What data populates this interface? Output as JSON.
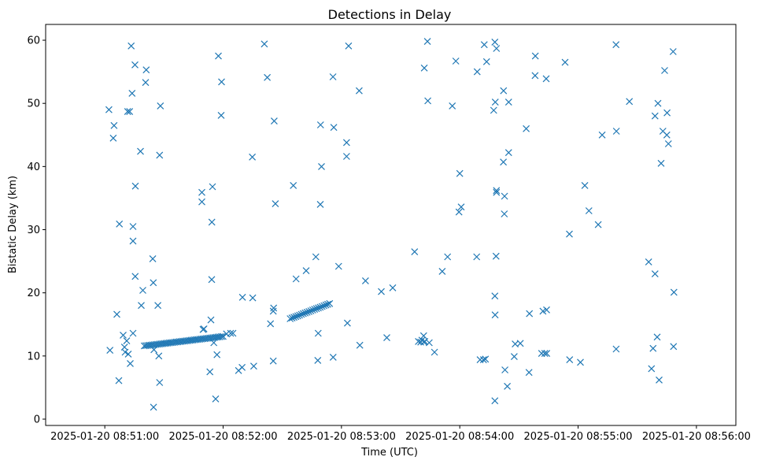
{
  "chart_data": {
    "type": "scatter",
    "title": "Detections in Delay",
    "xlabel": "Time (UTC)",
    "ylabel": "Bistatic Delay (km)",
    "marker": "x",
    "marker_color": "#1f77b4",
    "x_unit": "seconds since 2025-01-20 08:51:00",
    "xlim": [
      -30,
      320
    ],
    "ylim": [
      -1,
      62.5
    ],
    "x_ticks": [
      0,
      60,
      120,
      180,
      240,
      300
    ],
    "x_tick_labels": [
      "2025-01-20 08:51:00",
      "2025-01-20 08:52:00",
      "2025-01-20 08:53:00",
      "2025-01-20 08:54:00",
      "2025-01-20 08:55:00",
      "2025-01-20 08:56:00"
    ],
    "y_ticks": [
      0,
      10,
      20,
      30,
      40,
      50,
      60
    ],
    "y_tick_labels": [
      "0",
      "10",
      "20",
      "30",
      "40",
      "50",
      "60"
    ],
    "track_segments": [
      {
        "x0": 20,
        "x1": 60,
        "y0": 11.6,
        "y1": 13.1,
        "n": 48
      },
      {
        "x0": 94,
        "x1": 114,
        "y0": 15.9,
        "y1": 18.3,
        "n": 22
      }
    ],
    "points": [
      [
        2.1,
        49.0
      ],
      [
        2.6,
        10.9
      ],
      [
        4.3,
        44.5
      ],
      [
        4.7,
        46.5
      ],
      [
        6.1,
        16.6
      ],
      [
        7.4,
        30.9
      ],
      [
        7.1,
        6.1
      ],
      [
        9.3,
        13.3
      ],
      [
        10.0,
        11.4
      ],
      [
        10.3,
        10.6
      ],
      [
        11.1,
        12.4
      ],
      [
        11.9,
        10.3
      ],
      [
        12.9,
        8.8
      ],
      [
        11.6,
        48.7
      ],
      [
        12.6,
        48.7
      ],
      [
        13.4,
        59.1
      ],
      [
        13.8,
        51.6
      ],
      [
        14.3,
        13.6
      ],
      [
        14.3,
        30.5
      ],
      [
        14.3,
        28.2
      ],
      [
        15.3,
        56.1
      ],
      [
        15.5,
        36.9
      ],
      [
        15.4,
        22.6
      ],
      [
        18.1,
        42.4
      ],
      [
        18.5,
        18.0
      ],
      [
        19.3,
        20.4
      ],
      [
        21.0,
        55.3
      ],
      [
        20.7,
        53.3
      ],
      [
        24.3,
        25.4
      ],
      [
        24.6,
        21.6
      ],
      [
        24.9,
        11.0
      ],
      [
        24.7,
        1.9
      ],
      [
        26.9,
        18.0
      ],
      [
        27.4,
        10.0
      ],
      [
        27.8,
        5.8
      ],
      [
        27.8,
        41.8
      ],
      [
        28.2,
        49.6
      ],
      [
        49.2,
        34.4
      ],
      [
        49.2,
        35.9
      ],
      [
        49.8,
        14.2
      ],
      [
        50.3,
        14.3
      ],
      [
        53.3,
        7.5
      ],
      [
        53.8,
        15.7
      ],
      [
        54.2,
        22.1
      ],
      [
        54.3,
        31.2
      ],
      [
        54.6,
        36.8
      ],
      [
        55.3,
        12.1
      ],
      [
        56.2,
        3.2
      ],
      [
        56.9,
        10.2
      ],
      [
        57.6,
        57.5
      ],
      [
        59.0,
        48.1
      ],
      [
        59.2,
        53.4
      ],
      [
        61.7,
        13.5
      ],
      [
        63.8,
        13.6
      ],
      [
        65.0,
        13.6
      ],
      [
        67.8,
        7.7
      ],
      [
        69.6,
        8.2
      ],
      [
        69.8,
        19.3
      ],
      [
        74.8,
        41.5
      ],
      [
        75.0,
        19.2
      ],
      [
        75.5,
        8.4
      ],
      [
        80.9,
        59.4
      ],
      [
        82.4,
        54.1
      ],
      [
        84.0,
        15.1
      ],
      [
        85.4,
        9.2
      ],
      [
        85.4,
        17.1
      ],
      [
        85.6,
        17.6
      ],
      [
        85.9,
        47.2
      ],
      [
        86.5,
        34.1
      ],
      [
        95.6,
        37.0
      ],
      [
        97.0,
        22.2
      ],
      [
        102.1,
        23.5
      ],
      [
        107.0,
        25.7
      ],
      [
        108.2,
        13.6
      ],
      [
        108.0,
        9.3
      ],
      [
        109.3,
        34.0
      ],
      [
        109.4,
        46.6
      ],
      [
        109.9,
        40.0
      ],
      [
        115.7,
        54.2
      ],
      [
        115.8,
        9.8
      ],
      [
        116.1,
        46.2
      ],
      [
        118.6,
        24.2
      ],
      [
        122.6,
        43.8
      ],
      [
        122.6,
        41.6
      ],
      [
        123.6,
        59.1
      ],
      [
        123.0,
        15.2
      ],
      [
        129.0,
        52.0
      ],
      [
        129.3,
        11.7
      ],
      [
        132.2,
        21.9
      ],
      [
        140.2,
        20.2
      ],
      [
        143.0,
        12.9
      ],
      [
        146.0,
        20.8
      ],
      [
        157.1,
        26.5
      ],
      [
        159.0,
        12.3
      ],
      [
        160.2,
        12.2
      ],
      [
        160.8,
        12.5
      ],
      [
        161.8,
        12.2
      ],
      [
        161.7,
        13.2
      ],
      [
        162.3,
        12.3
      ],
      [
        162.0,
        55.6
      ],
      [
        163.6,
        59.8
      ],
      [
        163.8,
        50.4
      ],
      [
        164.5,
        12.1
      ],
      [
        167.2,
        10.6
      ],
      [
        171.1,
        23.4
      ],
      [
        173.8,
        25.7
      ],
      [
        176.2,
        49.6
      ],
      [
        178.0,
        56.7
      ],
      [
        179.6,
        32.8
      ],
      [
        180.0,
        38.9
      ],
      [
        180.7,
        33.6
      ],
      [
        188.6,
        25.7
      ],
      [
        188.8,
        55.0
      ],
      [
        190.3,
        9.4
      ],
      [
        192.0,
        9.4
      ],
      [
        192.4,
        59.3
      ],
      [
        193.0,
        9.5
      ],
      [
        193.6,
        56.6
      ],
      [
        197.2,
        48.9
      ],
      [
        197.8,
        59.7
      ],
      [
        198.0,
        50.2
      ],
      [
        197.8,
        19.5
      ],
      [
        197.9,
        16.5
      ],
      [
        197.8,
        2.9
      ],
      [
        198.4,
        25.8
      ],
      [
        198.6,
        58.7
      ],
      [
        198.6,
        36.2
      ],
      [
        198.6,
        35.9
      ],
      [
        202.2,
        52.0
      ],
      [
        202.1,
        40.7
      ],
      [
        202.7,
        35.3
      ],
      [
        202.6,
        32.5
      ],
      [
        202.9,
        7.8
      ],
      [
        204.1,
        5.2
      ],
      [
        204.8,
        50.2
      ],
      [
        204.8,
        42.2
      ],
      [
        207.6,
        9.9
      ],
      [
        208.1,
        11.9
      ],
      [
        210.7,
        12.0
      ],
      [
        213.7,
        46.0
      ],
      [
        215.1,
        7.4
      ],
      [
        215.3,
        16.7
      ],
      [
        218.3,
        57.5
      ],
      [
        218.2,
        54.4
      ],
      [
        221.5,
        10.4
      ],
      [
        222.2,
        17.1
      ],
      [
        223.1,
        10.4
      ],
      [
        224.0,
        17.3
      ],
      [
        224.1,
        10.4
      ],
      [
        223.8,
        53.9
      ],
      [
        233.4,
        56.5
      ],
      [
        235.6,
        29.3
      ],
      [
        235.7,
        9.4
      ],
      [
        241.2,
        9.0
      ],
      [
        243.4,
        37.0
      ],
      [
        245.5,
        33.0
      ],
      [
        250.2,
        30.8
      ],
      [
        252.2,
        45.0
      ],
      [
        259.4,
        45.6
      ],
      [
        259.2,
        59.3
      ],
      [
        259.3,
        11.1
      ],
      [
        266.0,
        50.3
      ],
      [
        275.8,
        24.9
      ],
      [
        277.2,
        8.0
      ],
      [
        278.0,
        11.2
      ],
      [
        279.0,
        48.0
      ],
      [
        279.0,
        23.0
      ],
      [
        280.1,
        13.0
      ],
      [
        280.5,
        50.0
      ],
      [
        281.1,
        6.2
      ],
      [
        282.1,
        40.5
      ],
      [
        283.0,
        45.6
      ],
      [
        283.9,
        55.2
      ],
      [
        285.0,
        45.0
      ],
      [
        285.1,
        48.5
      ],
      [
        285.8,
        43.6
      ],
      [
        288.2,
        58.2
      ],
      [
        288.6,
        20.1
      ],
      [
        288.4,
        11.5
      ]
    ]
  }
}
